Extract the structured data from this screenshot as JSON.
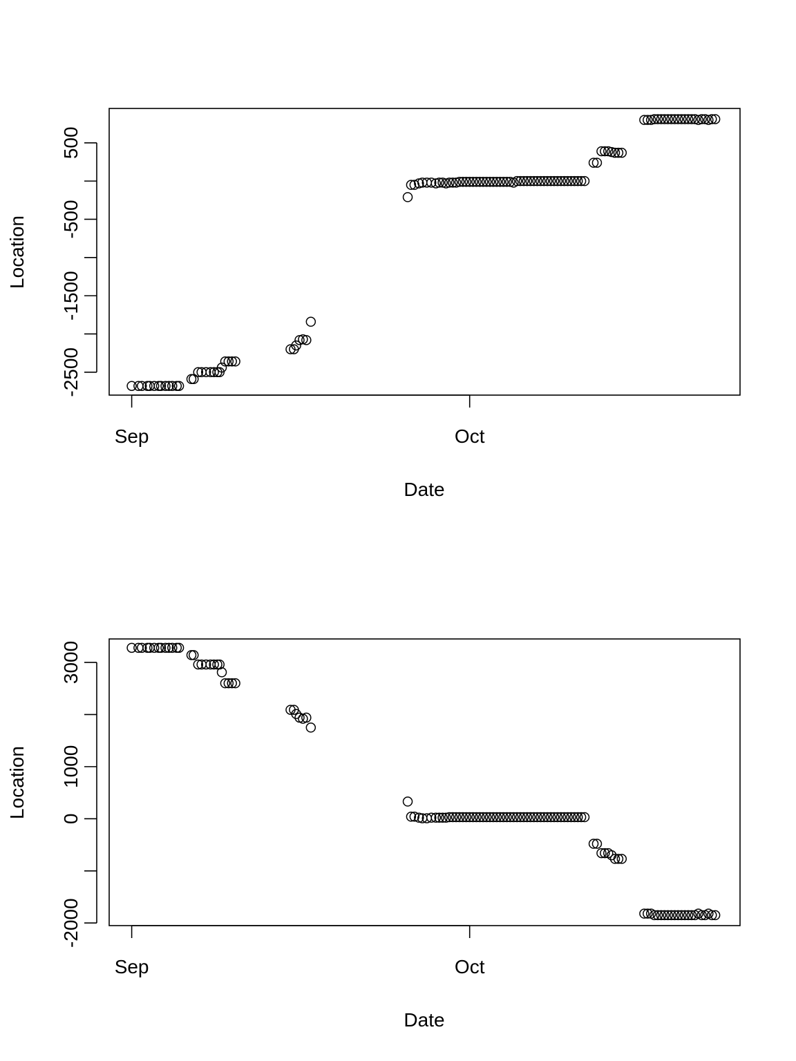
{
  "chart_data": [
    {
      "type": "scatter",
      "title": "",
      "xlabel": "Date",
      "ylabel": "Location",
      "xlim": [
        -2,
        54
      ],
      "ylim": [
        -2800,
        950
      ],
      "x_ticks": [
        {
          "value": 0,
          "label": "Sep"
        },
        {
          "value": 30,
          "label": "Oct"
        }
      ],
      "y_ticks": [
        -2500,
        -2000,
        -1500,
        -1000,
        -500,
        0,
        500
      ],
      "y_tick_labels": [
        {
          "value": -2500,
          "label": "-2500"
        },
        {
          "value": -1500,
          "label": "-1500"
        },
        {
          "value": -500,
          "label": "-500"
        },
        {
          "value": 500,
          "label": "500"
        }
      ],
      "series": [
        {
          "name": "Location",
          "x": [
            0,
            0.6,
            0.9,
            1.4,
            1.6,
            2.0,
            2.4,
            2.6,
            3.0,
            3.3,
            3.6,
            4.0,
            4.2,
            5.3,
            5.5,
            5.9,
            6.2,
            6.6,
            7.0,
            7.3,
            7.6,
            7.8,
            8.0,
            8.3,
            8.6,
            8.9,
            9.2,
            14.1,
            14.4,
            14.6,
            14.9,
            15.2,
            15.5,
            15.9,
            24.5,
            24.8,
            25.1,
            25.5,
            25.8,
            26.2,
            26.6,
            27.0,
            27.3,
            27.6,
            27.9,
            28.2,
            28.5,
            28.8,
            29.1,
            29.4,
            29.7,
            30.0,
            30.3,
            30.6,
            30.9,
            31.2,
            31.5,
            31.8,
            32.1,
            32.4,
            32.7,
            33.0,
            33.3,
            33.6,
            33.9,
            34.2,
            34.5,
            34.8,
            35.1,
            35.4,
            35.7,
            36.0,
            36.3,
            36.6,
            36.9,
            37.2,
            37.5,
            37.8,
            38.1,
            38.4,
            38.7,
            39.0,
            39.3,
            39.6,
            39.9,
            40.2,
            41.0,
            41.3,
            41.7,
            42.0,
            42.3,
            42.6,
            42.9,
            43.2,
            43.5,
            45.5,
            45.8,
            46.1,
            46.4,
            46.7,
            47.0,
            47.3,
            47.6,
            47.9,
            48.2,
            48.5,
            48.8,
            49.1,
            49.4,
            49.7,
            50.0,
            50.3,
            50.6,
            50.9,
            51.2,
            51.5,
            51.8
          ],
          "y": [
            -2680,
            -2680,
            -2680,
            -2680,
            -2680,
            -2680,
            -2680,
            -2680,
            -2680,
            -2680,
            -2680,
            -2680,
            -2680,
            -2590,
            -2590,
            -2500,
            -2500,
            -2500,
            -2500,
            -2500,
            -2500,
            -2500,
            -2440,
            -2360,
            -2360,
            -2360,
            -2360,
            -2200,
            -2200,
            -2150,
            -2080,
            -2070,
            -2080,
            -1840,
            -210,
            -50,
            -50,
            -30,
            -20,
            -20,
            -20,
            -30,
            -20,
            -20,
            -30,
            -20,
            -20,
            -20,
            -10,
            -10,
            -10,
            -10,
            -10,
            -10,
            -10,
            -10,
            -10,
            -10,
            -10,
            -10,
            -10,
            -10,
            -10,
            -10,
            -20,
            0,
            0,
            0,
            0,
            0,
            0,
            0,
            0,
            0,
            0,
            0,
            0,
            0,
            0,
            0,
            0,
            0,
            0,
            0,
            0,
            0,
            240,
            240,
            390,
            390,
            390,
            380,
            370,
            370,
            370,
            800,
            800,
            800,
            810,
            810,
            810,
            810,
            810,
            810,
            810,
            810,
            810,
            810,
            810,
            810,
            810,
            800,
            810,
            810,
            800,
            810,
            810
          ]
        }
      ]
    },
    {
      "type": "scatter",
      "title": "",
      "xlabel": "Date",
      "ylabel": "Location",
      "xlim": [
        -2,
        54
      ],
      "ylim": [
        -2050,
        3450
      ],
      "x_ticks": [
        {
          "value": 0,
          "label": "Sep"
        },
        {
          "value": 30,
          "label": "Oct"
        }
      ],
      "y_ticks": [
        -2000,
        -1000,
        0,
        1000,
        2000,
        3000
      ],
      "y_tick_labels": [
        {
          "value": -2000,
          "label": "-2000"
        },
        {
          "value": 0,
          "label": "0"
        },
        {
          "value": 1000,
          "label": "1000"
        },
        {
          "value": 3000,
          "label": "3000"
        }
      ],
      "series": [
        {
          "name": "Location",
          "x": [
            0,
            0.6,
            0.9,
            1.4,
            1.6,
            2.0,
            2.4,
            2.6,
            3.0,
            3.3,
            3.6,
            4.0,
            4.2,
            5.3,
            5.5,
            5.9,
            6.2,
            6.6,
            7.0,
            7.3,
            7.6,
            7.8,
            8.0,
            8.3,
            8.6,
            8.9,
            9.2,
            14.1,
            14.4,
            14.6,
            14.9,
            15.2,
            15.5,
            15.9,
            24.5,
            24.8,
            25.1,
            25.5,
            25.8,
            26.2,
            26.6,
            27.0,
            27.3,
            27.6,
            27.9,
            28.2,
            28.5,
            28.8,
            29.1,
            29.4,
            29.7,
            30.0,
            30.3,
            30.6,
            30.9,
            31.2,
            31.5,
            31.8,
            32.1,
            32.4,
            32.7,
            33.0,
            33.3,
            33.6,
            33.9,
            34.2,
            34.5,
            34.8,
            35.1,
            35.4,
            35.7,
            36.0,
            36.3,
            36.6,
            36.9,
            37.2,
            37.5,
            37.8,
            38.1,
            38.4,
            38.7,
            39.0,
            39.3,
            39.6,
            39.9,
            40.2,
            41.0,
            41.3,
            41.7,
            42.0,
            42.3,
            42.6,
            42.9,
            43.2,
            43.5,
            45.5,
            45.8,
            46.1,
            46.4,
            46.7,
            47.0,
            47.3,
            47.6,
            47.9,
            48.2,
            48.5,
            48.8,
            49.1,
            49.4,
            49.7,
            50.0,
            50.3,
            50.6,
            50.9,
            51.2,
            51.5,
            51.8
          ],
          "y": [
            3280,
            3280,
            3280,
            3280,
            3280,
            3280,
            3280,
            3280,
            3280,
            3280,
            3280,
            3280,
            3280,
            3140,
            3140,
            2960,
            2960,
            2960,
            2960,
            2960,
            2960,
            2960,
            2810,
            2600,
            2600,
            2600,
            2600,
            2090,
            2090,
            2010,
            1940,
            1920,
            1940,
            1750,
            330,
            40,
            40,
            20,
            10,
            10,
            20,
            20,
            20,
            20,
            20,
            30,
            30,
            30,
            30,
            30,
            30,
            30,
            30,
            30,
            30,
            30,
            30,
            30,
            30,
            30,
            30,
            30,
            30,
            30,
            30,
            30,
            30,
            30,
            30,
            30,
            30,
            30,
            30,
            30,
            30,
            30,
            30,
            30,
            30,
            30,
            30,
            30,
            30,
            30,
            30,
            30,
            -480,
            -480,
            -660,
            -660,
            -660,
            -700,
            -770,
            -770,
            -770,
            -1820,
            -1820,
            -1820,
            -1850,
            -1850,
            -1850,
            -1850,
            -1850,
            -1850,
            -1850,
            -1850,
            -1850,
            -1850,
            -1850,
            -1850,
            -1850,
            -1820,
            -1850,
            -1850,
            -1820,
            -1850,
            -1850
          ]
        }
      ]
    }
  ]
}
